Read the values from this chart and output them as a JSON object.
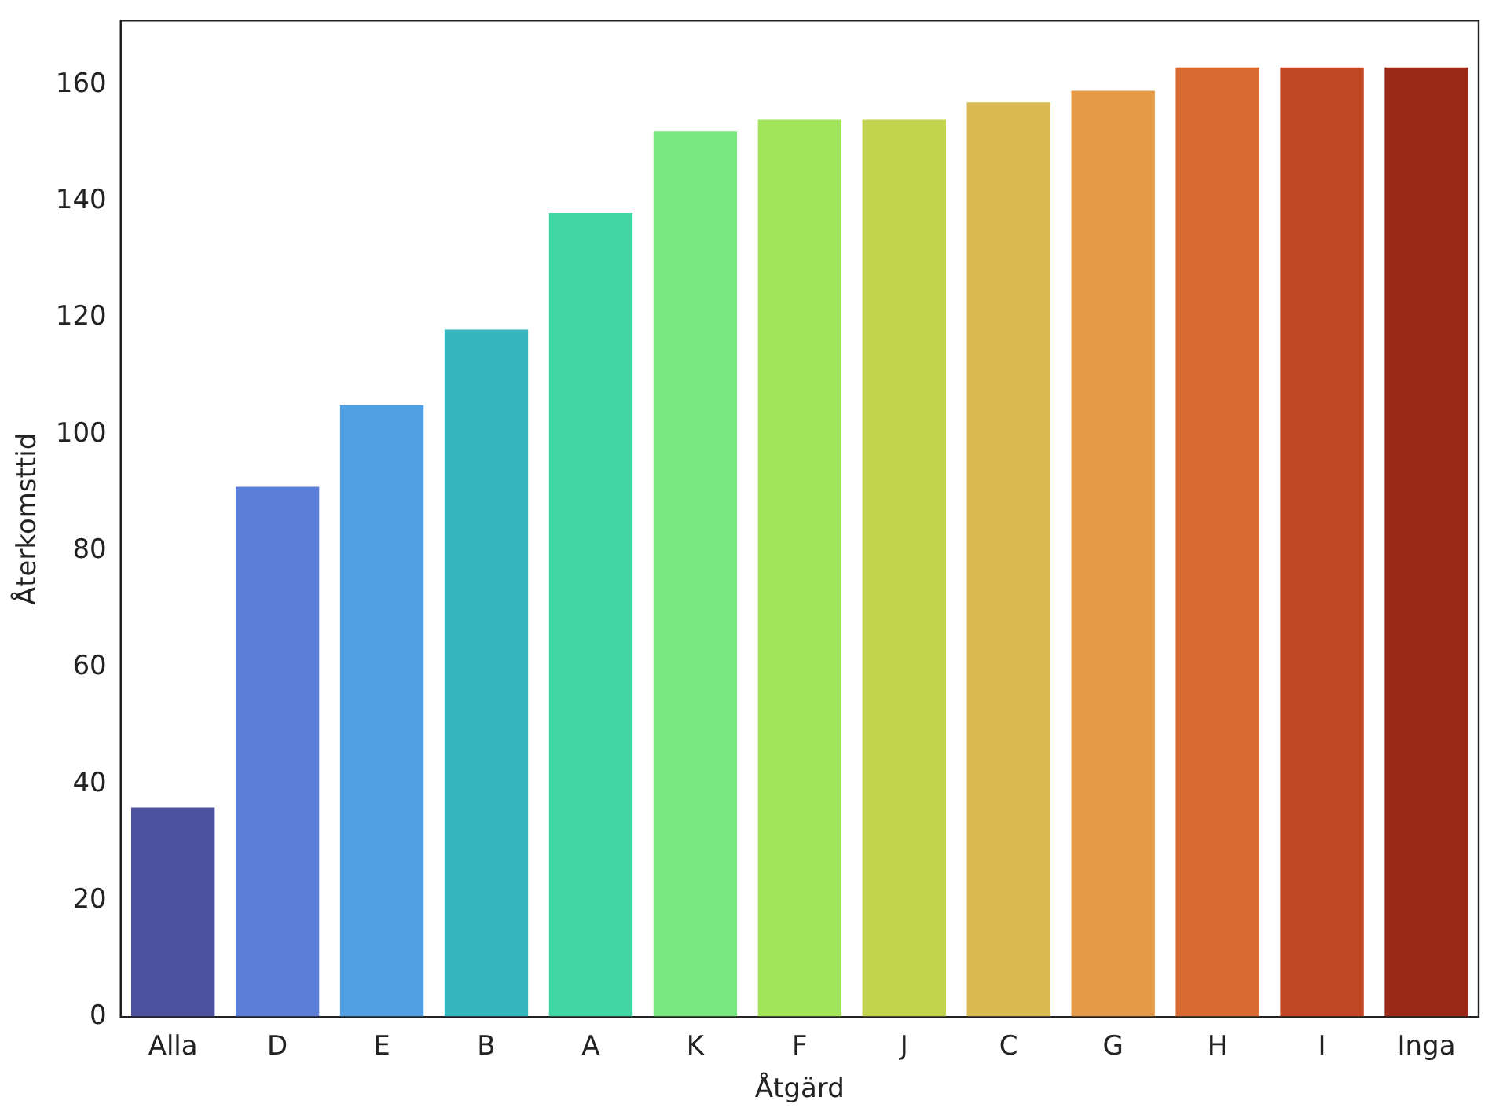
{
  "chart_data": {
    "type": "bar",
    "xlabel": "Åtgärd",
    "ylabel": "Återkomsttid",
    "categories": [
      "Alla",
      "D",
      "E",
      "B",
      "A",
      "K",
      "F",
      "J",
      "C",
      "G",
      "H",
      "I",
      "Inga"
    ],
    "values": [
      36,
      91,
      105,
      118,
      138,
      152,
      154,
      154,
      157,
      159,
      163,
      163,
      163
    ],
    "colors": [
      "#4c51a0",
      "#5b7fd8",
      "#51a0e3",
      "#36b7c0",
      "#41d5a3",
      "#78e97e",
      "#a3e55a",
      "#c2d34d",
      "#dbb952",
      "#e59a48",
      "#d86b32",
      "#c04723",
      "#9a2a18"
    ],
    "ylim": [
      0,
      171
    ],
    "yticks": [
      0,
      20,
      40,
      60,
      80,
      100,
      120,
      140,
      160
    ],
    "grid": false,
    "legend": false
  }
}
